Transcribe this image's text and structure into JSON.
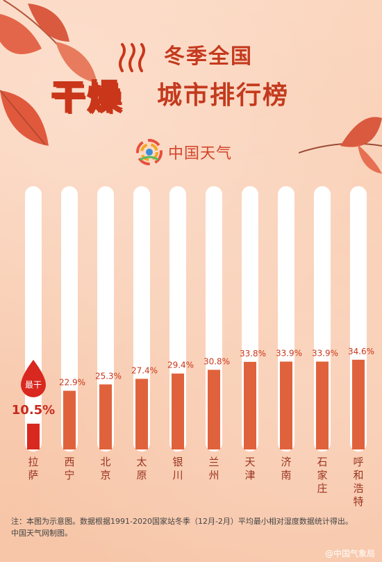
{
  "header": {
    "title_line1": "冬季全国",
    "title_dry": "干燥",
    "title_rest": "城市排行榜"
  },
  "brand": {
    "name": "中国天气",
    "logo_icon": "weather-china-logo-icon"
  },
  "chart_data": {
    "type": "bar",
    "categories": [
      "拉萨",
      "西宁",
      "北京",
      "太原",
      "银川",
      "兰州",
      "天津",
      "济南",
      "石家庄",
      "呼和浩特"
    ],
    "values": [
      10.5,
      22.9,
      25.3,
      27.4,
      29.4,
      30.8,
      33.8,
      33.9,
      33.9,
      34.6
    ],
    "value_labels": [
      "10.5%",
      "22.9%",
      "25.3%",
      "27.4%",
      "29.4%",
      "30.8%",
      "33.8%",
      "33.9%",
      "33.9%",
      "34.6%"
    ],
    "unit": "%",
    "highlight": {
      "label": "最干",
      "index": 0
    },
    "ylim": [
      0,
      100
    ],
    "bar_color": "#e0623c",
    "highlight_color": "#d8281f"
  },
  "footnote": {
    "line1": "注：本图为示意图。数据根据1991-2020国家站冬季（12月-2月）平均最小相对湿度数据统计得出。",
    "line2": "中国天气网制图。"
  },
  "credit": "@中国气象局"
}
